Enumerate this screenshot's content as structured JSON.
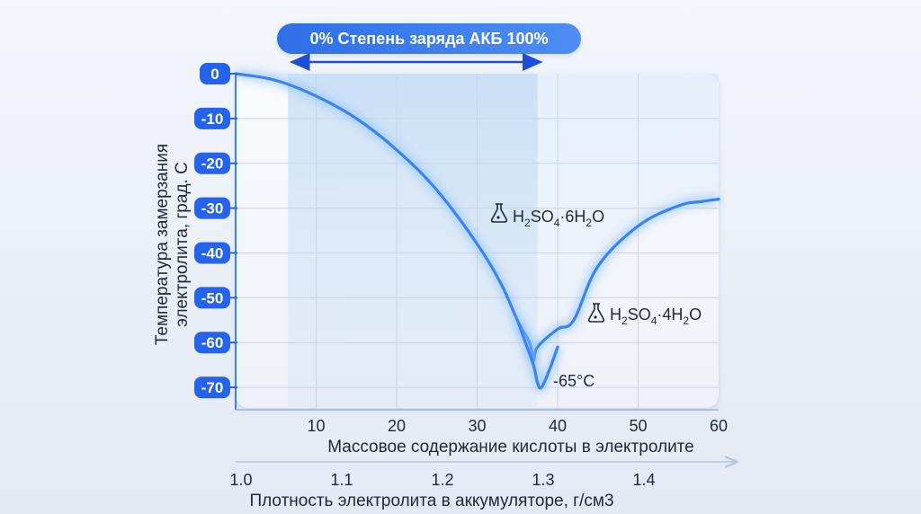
{
  "chart_data": {
    "type": "line",
    "title": "",
    "charge_label": "0% Степень заряда АКБ 100%",
    "ylabel_line1": "Температура замерзания",
    "ylabel_line2": "электролита, град. С",
    "xlabel": "Массовое содержание кислоты в электролите",
    "x2label": "Плотность электролита в аккумуляторе, г/см3",
    "xlim": [
      0,
      60
    ],
    "ylim": [
      -75,
      0
    ],
    "x_ticks": [
      "10",
      "20",
      "30",
      "40",
      "50",
      "60"
    ],
    "y_ticks": [
      "0",
      "-10",
      "-20",
      "-30",
      "-40",
      "-50",
      "-60",
      "-70"
    ],
    "x2_ticks": [
      "1.0",
      "1.1",
      "1.2",
      "1.3",
      "1.4"
    ],
    "grid": true,
    "highlight_region_x": [
      6.5,
      37.5
    ],
    "series": [
      {
        "x": [
          0,
          5,
          10,
          15,
          20,
          25,
          30,
          33,
          35,
          36.5,
          37,
          37.5,
          40,
          42,
          45,
          50,
          55,
          58,
          60
        ],
        "y": [
          0,
          -1.5,
          -5,
          -10,
          -17,
          -26,
          -38,
          -47,
          -55,
          -60,
          -64,
          -61,
          -57,
          -55,
          -43,
          -34,
          -29.5,
          -28.5,
          -28
        ]
      },
      {
        "x": [
          35,
          36,
          37,
          37.5,
          38,
          39,
          40
        ],
        "y": [
          -55,
          -60,
          -65,
          -69,
          -70,
          -66,
          -61
        ]
      }
    ],
    "annotations": [
      {
        "label_main": "H",
        "sub1": "2",
        "mid": "SO",
        "sub2": "4",
        "tail": "·6H",
        "sub3": "2",
        "end": "O"
      },
      {
        "label_main": "H",
        "sub1": "2",
        "mid": "SO",
        "sub2": "4",
        "tail": "·4H",
        "sub3": "2",
        "end": "O"
      },
      {
        "text": "-65°C"
      }
    ],
    "colors": {
      "accent": "#2563eb",
      "curve": "#3b82f6",
      "curve_glow": "#93c5fd",
      "tick_badge": "#2563eb",
      "highlight": "#d5e6f7",
      "grid": "#c9d4e3",
      "text": "#1f2937"
    }
  }
}
